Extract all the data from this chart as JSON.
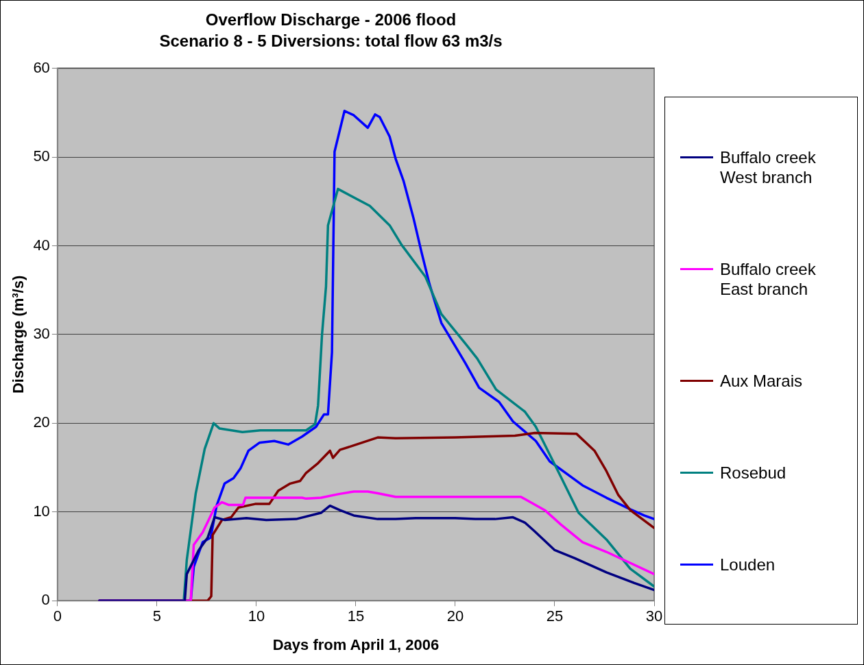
{
  "chart_data": {
    "type": "line",
    "title": "Overflow Discharge - 2006 flood",
    "subtitle": "Scenario 8 - 5 Diversions: total flow 63 m3/s",
    "xlabel": "Days from April 1, 2006",
    "ylabel": "Discharge (m³/s)",
    "xlim": [
      0,
      30
    ],
    "xticks": [
      0,
      5,
      10,
      15,
      20,
      25,
      30
    ],
    "ylim": [
      0,
      60
    ],
    "yticks": [
      0,
      10,
      20,
      30,
      40,
      50,
      60
    ],
    "grid": "y",
    "legend": "right",
    "marker": "none",
    "line_style": "solid",
    "series": [
      {
        "name": "Buffalo creek West branch",
        "color": "#000080",
        "x": [
          2.1,
          6.4,
          6.5,
          7.1,
          7.55,
          7.9,
          8.4,
          9.5,
          10.5,
          12,
          13.25,
          13.7,
          14.2,
          14.9,
          16.1,
          17,
          18,
          19,
          20,
          21,
          22,
          22.9,
          23.5,
          24,
          25,
          26,
          27.6,
          29,
          30
        ],
        "values": [
          0,
          0,
          3.0,
          5.7,
          7.1,
          9.4,
          9.1,
          9.3,
          9.1,
          9.2,
          9.9,
          10.7,
          10.2,
          9.6,
          9.2,
          9.2,
          9.3,
          9.3,
          9.3,
          9.2,
          9.2,
          9.4,
          8.8,
          7.8,
          5.7,
          4.8,
          3.2,
          2.0,
          1.2
        ]
      },
      {
        "name": "Buffalo creek East branch",
        "color": "#ff00ff",
        "x": [
          2.1,
          6.7,
          6.85,
          7.3,
          7.9,
          8.27,
          8.6,
          9.33,
          9.45,
          12.3,
          12.5,
          13.25,
          14.1,
          14.9,
          15.6,
          16.1,
          17,
          20,
          23.3,
          24.5,
          25.3,
          26.4,
          27.6,
          30
        ],
        "values": [
          0,
          0,
          6.3,
          7.7,
          10.5,
          11.1,
          10.8,
          10.8,
          11.6,
          11.6,
          11.5,
          11.6,
          12.0,
          12.3,
          12.3,
          12.1,
          11.7,
          11.7,
          11.7,
          10.2,
          8.6,
          6.6,
          5.5,
          3.0
        ]
      },
      {
        "name": "Aux Marais",
        "color": "#800000",
        "x": [
          2.1,
          7.55,
          7.73,
          7.8,
          8.27,
          8.73,
          9.1,
          9.94,
          10.65,
          11.1,
          11.7,
          12.2,
          12.5,
          13.1,
          13.7,
          13.85,
          14.2,
          14.9,
          16.1,
          17,
          20,
          23,
          24,
          26.1,
          27,
          27.6,
          28.2,
          28.8,
          30
        ],
        "values": [
          0,
          0,
          0.5,
          7.4,
          9.1,
          9.4,
          10.5,
          10.9,
          10.9,
          12.4,
          13.2,
          13.5,
          14.4,
          15.5,
          16.9,
          16.1,
          17.0,
          17.5,
          18.4,
          18.3,
          18.4,
          18.6,
          18.9,
          18.8,
          16.9,
          14.6,
          11.9,
          10.2,
          8.2
        ]
      },
      {
        "name": "Rosebud",
        "color": "#008080",
        "x": [
          2.1,
          6.35,
          6.5,
          6.95,
          7.4,
          7.85,
          8.15,
          9.3,
          10.2,
          12.5,
          12.95,
          13.1,
          13.3,
          13.5,
          13.6,
          14.1,
          15.7,
          16.7,
          17.3,
          18.5,
          19.3,
          20.5,
          21.1,
          22.05,
          23.5,
          24.05,
          25.3,
          26.2,
          27.6,
          28.8,
          30
        ],
        "values": [
          0,
          0,
          4.6,
          12.1,
          17.1,
          20.0,
          19.4,
          19.0,
          19.2,
          19.2,
          19.9,
          22.0,
          30.0,
          35.4,
          42.3,
          46.4,
          44.5,
          42.3,
          40.1,
          36.5,
          32.3,
          29.0,
          27.3,
          23.8,
          21.3,
          19.6,
          14.0,
          9.9,
          6.9,
          3.6,
          1.6
        ]
      },
      {
        "name": "Louden",
        "color": "#0000ff",
        "x": [
          2.1,
          6.7,
          6.85,
          7.3,
          7.7,
          8.0,
          8.4,
          8.85,
          9.2,
          9.6,
          10.15,
          10.9,
          11.6,
          12.3,
          13.0,
          13.4,
          13.6,
          13.8,
          13.93,
          14.43,
          14.9,
          15.6,
          15.97,
          16.2,
          16.7,
          17.0,
          17.4,
          17.9,
          18.3,
          18.7,
          19.3,
          20.5,
          21.2,
          22.2,
          22.9,
          24.05,
          24.75,
          26.4,
          27.6,
          28.8,
          29.5,
          30
        ],
        "values": [
          0,
          0,
          3.8,
          6.6,
          7.1,
          10.7,
          13.2,
          13.8,
          14.9,
          16.9,
          17.8,
          18.0,
          17.6,
          18.5,
          19.6,
          21.0,
          21.0,
          28.0,
          50.6,
          55.2,
          54.7,
          53.3,
          54.8,
          54.5,
          52.3,
          49.8,
          47.3,
          43.1,
          39.3,
          35.7,
          31.3,
          26.8,
          24.0,
          22.4,
          20.2,
          18.0,
          15.7,
          13.0,
          11.6,
          10.3,
          9.6,
          9.2
        ]
      }
    ]
  }
}
